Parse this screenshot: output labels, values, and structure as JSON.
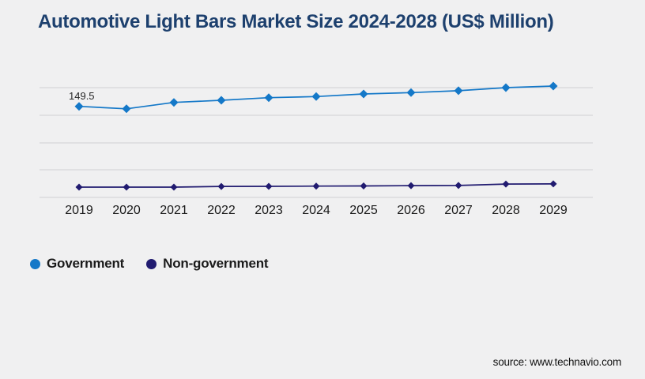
{
  "title": "Automotive Light Bars Market Size 2024-2028 (US$ Million)",
  "source": "source: www.technavio.com",
  "colors": {
    "background": "#f0f0f1",
    "title": "#1d406e",
    "gridline": "#cfcfd3",
    "government": "#1478c8",
    "non_government": "#211b70",
    "text": "#1a1a1a"
  },
  "legend": {
    "items": [
      {
        "label": "Government",
        "color": "#1478c8"
      },
      {
        "label": "Non-government",
        "color": "#211b70"
      }
    ]
  },
  "chart_data": {
    "type": "line",
    "title": "Automotive Light Bars Market Size 2024-2028 (US$ Million)",
    "categories": [
      "2019",
      "2020",
      "2021",
      "2022",
      "2023",
      "2024",
      "2025",
      "2026",
      "2027",
      "2028",
      "2029"
    ],
    "series": [
      {
        "name": "Government",
        "color": "#1478c8",
        "marker": "diamond",
        "values": [
          149.5,
          145.4,
          156.0,
          159.6,
          163.9,
          165.7,
          170.0,
          172.3,
          175.4,
          180.5,
          183.1
        ]
      },
      {
        "name": "Non-government",
        "color": "#211b70",
        "marker": "diamond",
        "values": [
          15.7,
          15.7,
          15.7,
          16.9,
          17.0,
          17.4,
          17.6,
          18.2,
          18.4,
          20.8,
          21.0
        ]
      }
    ],
    "point_label": "149.5",
    "point_label_series": "Government",
    "point_label_category": "2019",
    "xlabel": "",
    "ylabel": "",
    "ylim": [
      0,
      208
    ],
    "grid": "horizontal-only",
    "legend_position": "bottom-left",
    "annotations_note": "only first Government point is labeled; y-axis has no visible tick labels"
  }
}
